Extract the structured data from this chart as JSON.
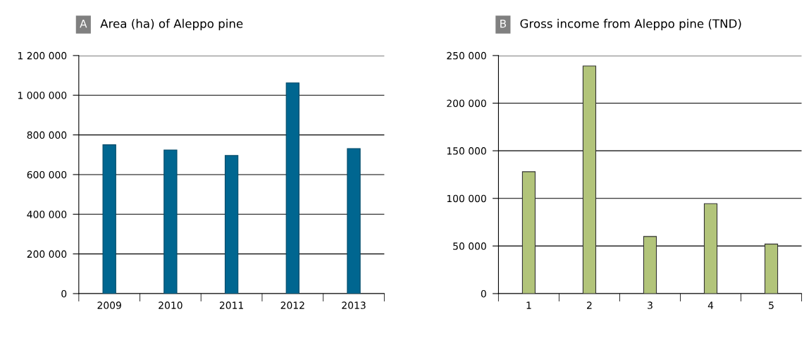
{
  "chart_data": [
    {
      "type": "bar",
      "title": "Area (ha) of Aleppo pine",
      "annotations": [
        "A"
      ],
      "categories": [
        "2009",
        "2010",
        "2011",
        "2012",
        "2013"
      ],
      "values": [
        750000,
        724000,
        696000,
        1062000,
        731000
      ],
      "color": "#006690",
      "ylim": [
        0,
        1200000
      ],
      "yticks": [
        {
          "value": 0,
          "label": "0"
        },
        {
          "value": 200000,
          "label": "200 000"
        },
        {
          "value": 400000,
          "label": "400 000"
        },
        {
          "value": 600000,
          "label": "600 000"
        },
        {
          "value": 800000,
          "label": "800 000"
        },
        {
          "value": 1000000,
          "label": "1 000 000"
        },
        {
          "value": 1200000,
          "label": "1 200 000"
        }
      ],
      "grid": "y"
    },
    {
      "type": "bar",
      "title": "Gross income from Aleppo pine (TND)",
      "annotations": [
        "B"
      ],
      "categories": [
        "1",
        "2",
        "3",
        "4",
        "5"
      ],
      "values": [
        128000,
        239000,
        60000,
        94500,
        52000
      ],
      "color": "#b2c47a",
      "ylim": [
        0,
        250000
      ],
      "yticks": [
        {
          "value": 0,
          "label": "0"
        },
        {
          "value": 50000,
          "label": "50 000"
        },
        {
          "value": 100000,
          "label": "100 000"
        },
        {
          "value": 150000,
          "label": "150 000"
        },
        {
          "value": 200000,
          "label": "200 000"
        },
        {
          "value": 250000,
          "label": "250 000"
        }
      ],
      "grid": "y"
    }
  ]
}
